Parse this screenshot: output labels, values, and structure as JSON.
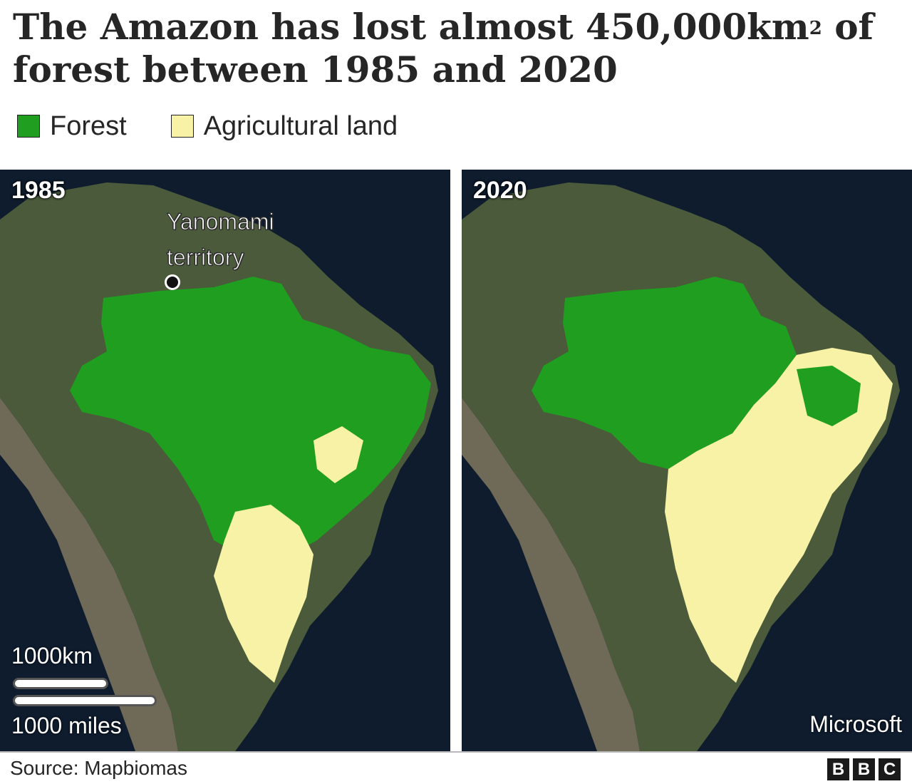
{
  "title": {
    "main": "The Amazon has lost almost 450,000km",
    "superscript": "2",
    "rest": " of forest between 1985 and 2020"
  },
  "legend": [
    {
      "label": "Forest",
      "color": "#1f9e1f"
    },
    {
      "label": "Agricultural land",
      "color": "#f7f2a6"
    }
  ],
  "maps": {
    "left": {
      "year": "1985"
    },
    "right": {
      "year": "2020"
    }
  },
  "annotation": {
    "label": "Yanomami territory",
    "icon": "location-dot-icon"
  },
  "scale": {
    "km_label": "1000km",
    "mi_label": "1000 miles"
  },
  "attribution": "Microsoft",
  "source": "Source: Mapbiomas",
  "logo": {
    "letters": [
      "B",
      "B",
      "C"
    ]
  },
  "colors": {
    "forest": "#1f9e1f",
    "agricultural": "#f7f2a6",
    "ocean": "#0e1c2e",
    "land": "#4a5a3a",
    "land_dry": "#8a8466",
    "andes": "#6f6a57"
  }
}
